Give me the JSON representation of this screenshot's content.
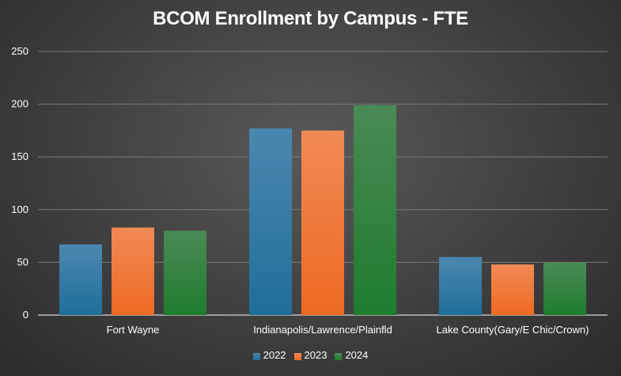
{
  "chart_data": {
    "type": "bar",
    "title": "BCOM Enrollment by Campus - FTE",
    "xlabel": "",
    "ylabel": "",
    "ylim": [
      0,
      250
    ],
    "yticks": [
      0,
      50,
      100,
      150,
      200,
      250
    ],
    "grid": true,
    "legend_position": "bottom",
    "categories": [
      "Fort Wayne",
      "Indianapolis/Lawrence/Plainfld",
      "Lake County(Gary/E Chic/Crown)"
    ],
    "series": [
      {
        "name": "2022",
        "values": [
          67,
          177,
          55
        ],
        "color": "#1f6f99",
        "color_light": "#4b87b0"
      },
      {
        "name": "2023",
        "values": [
          83,
          175,
          48
        ],
        "color": "#ee6a22",
        "color_light": "#f08a55"
      },
      {
        "name": "2024",
        "values": [
          80,
          199,
          50
        ],
        "color": "#1e7d2e",
        "color_light": "#4a8a55"
      }
    ]
  }
}
